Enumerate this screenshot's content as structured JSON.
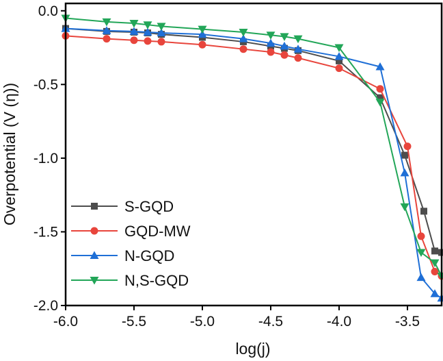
{
  "chart_data": {
    "type": "line",
    "title": "",
    "xlabel": "log(j)",
    "ylabel": "Overpotential (V (η))",
    "xlim": [
      -6.0,
      -3.25
    ],
    "ylim": [
      -2.0,
      0.05
    ],
    "xticks": [
      -6.0,
      -5.5,
      -5.0,
      -4.5,
      -4.0,
      -3.5
    ],
    "xtick_labels": [
      "-6.0",
      "-5.5",
      "-5.0",
      "-4.5",
      "-4.0",
      "-3.5"
    ],
    "yticks": [
      0.0,
      -0.5,
      -1.0,
      -1.5,
      -2.0
    ],
    "ytick_labels": [
      "0.0",
      "-0.5",
      "-1.0",
      "-1.5",
      "-2.0"
    ],
    "grid": false,
    "legend_position": "bottom-left",
    "series": [
      {
        "name": "S-GQD",
        "color": "#4d4d4d",
        "marker": "square",
        "x": [
          -6.0,
          -5.7,
          -5.5,
          -5.4,
          -5.3,
          -5.0,
          -4.7,
          -4.5,
          -4.4,
          -4.3,
          -4.0,
          -3.7,
          -3.52,
          -3.38,
          -3.3,
          -3.25
        ],
        "y": [
          -0.12,
          -0.14,
          -0.145,
          -0.15,
          -0.16,
          -0.18,
          -0.21,
          -0.24,
          -0.255,
          -0.27,
          -0.34,
          -0.59,
          -0.98,
          -1.36,
          -1.63,
          -1.64
        ]
      },
      {
        "name": "GQD-MW",
        "color": "#e8453c",
        "marker": "circle",
        "x": [
          -6.0,
          -5.7,
          -5.5,
          -5.4,
          -5.3,
          -5.0,
          -4.7,
          -4.5,
          -4.4,
          -4.3,
          -4.0,
          -3.7,
          -3.5,
          -3.4,
          -3.3,
          -3.25
        ],
        "y": [
          -0.17,
          -0.19,
          -0.2,
          -0.205,
          -0.21,
          -0.23,
          -0.26,
          -0.28,
          -0.3,
          -0.32,
          -0.39,
          -0.53,
          -0.92,
          -1.53,
          -1.77,
          -1.8
        ]
      },
      {
        "name": "N-GQD",
        "color": "#1f6fd6",
        "marker": "triangle-up",
        "x": [
          -6.0,
          -5.7,
          -5.5,
          -5.4,
          -5.3,
          -5.0,
          -4.7,
          -4.5,
          -4.4,
          -4.3,
          -4.0,
          -3.7,
          -3.52,
          -3.4,
          -3.3,
          -3.25
        ],
        "y": [
          -0.12,
          -0.135,
          -0.14,
          -0.145,
          -0.15,
          -0.16,
          -0.19,
          -0.22,
          -0.24,
          -0.26,
          -0.31,
          -0.38,
          -1.1,
          -1.81,
          -1.92,
          -1.95
        ]
      },
      {
        "name": "N,S-GQD",
        "color": "#22a658",
        "marker": "triangle-down",
        "x": [
          -6.0,
          -5.7,
          -5.5,
          -5.4,
          -5.3,
          -5.0,
          -4.7,
          -4.5,
          -4.4,
          -4.3,
          -4.0,
          -3.7,
          -3.52,
          -3.4,
          -3.3,
          -3.25
        ],
        "y": [
          -0.05,
          -0.075,
          -0.085,
          -0.095,
          -0.105,
          -0.125,
          -0.145,
          -0.165,
          -0.175,
          -0.19,
          -0.25,
          -0.62,
          -1.33,
          -1.64,
          -1.71,
          -1.8
        ]
      }
    ]
  }
}
